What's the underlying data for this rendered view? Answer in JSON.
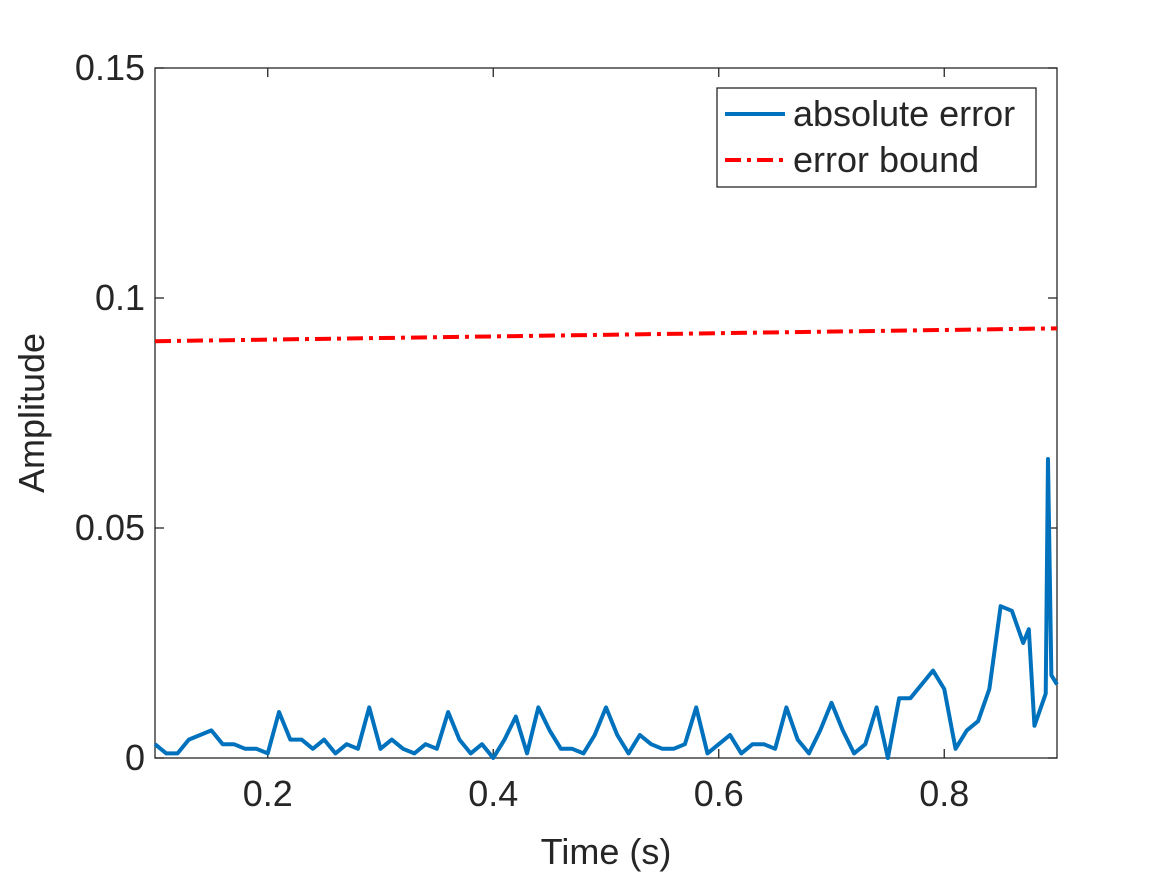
{
  "chart_data": {
    "type": "line",
    "x_label": "Time (s)",
    "y_label": "Amplitude",
    "xlim": [
      0.1,
      0.9
    ],
    "ylim": [
      0,
      0.15
    ],
    "xticks": [
      0.2,
      0.4,
      0.6,
      0.8
    ],
    "yticks": [
      0,
      0.05,
      0.1,
      0.15
    ],
    "legend": "upper right",
    "series": [
      {
        "name": "absolute error",
        "color": "#0072bd",
        "style": "solid",
        "x": [
          0.1,
          0.11,
          0.12,
          0.13,
          0.14,
          0.15,
          0.16,
          0.17,
          0.18,
          0.19,
          0.2,
          0.21,
          0.22,
          0.23,
          0.24,
          0.25,
          0.26,
          0.27,
          0.28,
          0.29,
          0.3,
          0.31,
          0.32,
          0.33,
          0.34,
          0.35,
          0.36,
          0.37,
          0.38,
          0.39,
          0.4,
          0.41,
          0.42,
          0.43,
          0.44,
          0.45,
          0.46,
          0.47,
          0.48,
          0.49,
          0.5,
          0.51,
          0.52,
          0.53,
          0.54,
          0.55,
          0.56,
          0.57,
          0.58,
          0.59,
          0.6,
          0.61,
          0.62,
          0.63,
          0.64,
          0.65,
          0.66,
          0.67,
          0.68,
          0.69,
          0.7,
          0.71,
          0.72,
          0.73,
          0.74,
          0.75,
          0.76,
          0.77,
          0.78,
          0.79,
          0.8,
          0.81,
          0.82,
          0.83,
          0.84,
          0.85,
          0.86,
          0.87,
          0.875,
          0.88,
          0.89,
          0.892,
          0.895,
          0.9
        ],
        "values": [
          0.003,
          0.001,
          0.001,
          0.004,
          0.005,
          0.006,
          0.003,
          0.003,
          0.002,
          0.002,
          0.001,
          0.01,
          0.004,
          0.004,
          0.002,
          0.004,
          0.001,
          0.003,
          0.002,
          0.011,
          0.002,
          0.004,
          0.002,
          0.001,
          0.003,
          0.002,
          0.01,
          0.004,
          0.001,
          0.003,
          0.0,
          0.004,
          0.009,
          0.001,
          0.011,
          0.006,
          0.002,
          0.002,
          0.001,
          0.005,
          0.011,
          0.005,
          0.001,
          0.005,
          0.003,
          0.002,
          0.002,
          0.003,
          0.011,
          0.001,
          0.003,
          0.005,
          0.001,
          0.003,
          0.003,
          0.002,
          0.011,
          0.004,
          0.001,
          0.006,
          0.012,
          0.006,
          0.001,
          0.003,
          0.011,
          0.0,
          0.013,
          0.013,
          0.016,
          0.019,
          0.015,
          0.002,
          0.006,
          0.008,
          0.015,
          0.033,
          0.032,
          0.025,
          0.028,
          0.007,
          0.014,
          0.065,
          0.018,
          0.016
        ]
      },
      {
        "name": "error bound",
        "color": "#ff0000",
        "style": "dashdot",
        "x": [
          0.1,
          0.9
        ],
        "values": [
          0.0906,
          0.0934
        ]
      }
    ]
  }
}
